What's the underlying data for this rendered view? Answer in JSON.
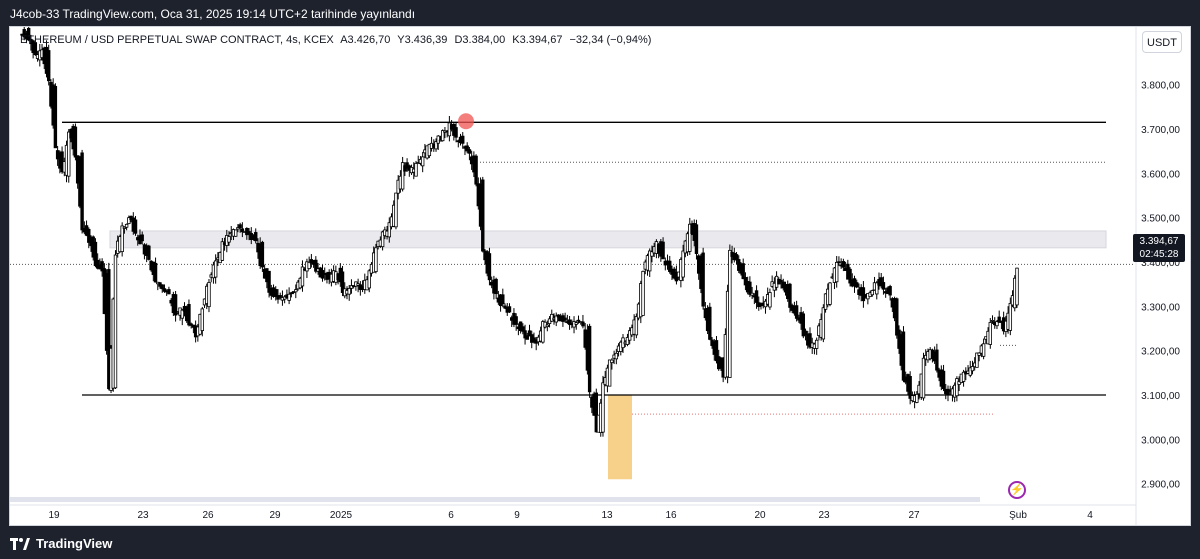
{
  "header": {
    "published": "J4cob-33 TradingView.com, Oca 31, 2025 19:14 UTC+2 tarihinde yayınlandı"
  },
  "legend": {
    "symbol": "ETHEREUM / USD PERPETUAL SWAP CONTRACT, 4s, KCEX",
    "open": "A3.426,70",
    "high": "Y3.436,39",
    "low": "D3.384,00",
    "close": "K3.394,67",
    "change": "−32,34 (−0,94%)"
  },
  "currency_button": "USDT",
  "price_tag": {
    "price": "3.394,67",
    "countdown": "02:45:28"
  },
  "footer": {
    "brand": "TradingView"
  },
  "colors": {
    "bull": "#ffffff",
    "bear": "#000000",
    "highlight": "#f5c56b",
    "marker": "#ef5350",
    "zone": "#e9e9ee",
    "bolt": "#9c27b0"
  },
  "chart_data": {
    "type": "candlestick",
    "ylim": [
      2870,
      3930
    ],
    "y_ticks": [
      2900,
      3000,
      3100,
      3200,
      3300,
      3400,
      3500,
      3600,
      3700,
      3800
    ],
    "y_tick_labels": [
      "2.900,00",
      "3.000,00",
      "3.100,00",
      "3.200,00",
      "3.300,00",
      "3.400,00",
      "3.500,00",
      "3.600,00",
      "3.700,00",
      "3.800,00"
    ],
    "x_tick_labels": [
      "19",
      "23",
      "26",
      "29",
      "2025",
      "6",
      "9",
      "13",
      "16",
      "20",
      "23",
      "27",
      "Şub",
      "4"
    ],
    "last_price": 3394.67,
    "horizontal_levels": [
      {
        "price": 3715,
        "style": "solid",
        "label": ""
      },
      {
        "price": 3100,
        "style": "solid",
        "label": ""
      },
      {
        "price": 3625,
        "style": "dotted",
        "label": ""
      },
      {
        "price": 3057,
        "style": "dotted-red",
        "label": ""
      },
      {
        "price": 3212,
        "style": "dotted",
        "label": ""
      }
    ],
    "resistance_zone": [
      3432,
      3470
    ],
    "highlight_range": [
      2910,
      3100
    ],
    "marked_high": 3722,
    "path": [
      3920,
      3900,
      3860,
      3880,
      3800,
      3650,
      3600,
      3700,
      3640,
      3480,
      3450,
      3400,
      3380,
      3110,
      3420,
      3480,
      3500,
      3460,
      3440,
      3400,
      3350,
      3340,
      3320,
      3280,
      3300,
      3260,
      3240,
      3300,
      3360,
      3400,
      3440,
      3460,
      3480,
      3470,
      3460,
      3440,
      3380,
      3340,
      3320,
      3320,
      3330,
      3340,
      3380,
      3400,
      3380,
      3370,
      3360,
      3380,
      3330,
      3340,
      3350,
      3340,
      3380,
      3430,
      3460,
      3480,
      3560,
      3620,
      3600,
      3620,
      3640,
      3660,
      3670,
      3690,
      3710,
      3680,
      3660,
      3640,
      3580,
      3420,
      3360,
      3320,
      3300,
      3280,
      3260,
      3240,
      3230,
      3220,
      3260,
      3270,
      3280,
      3270,
      3260,
      3270,
      3250,
      3100,
      3020,
      3120,
      3180,
      3200,
      3220,
      3240,
      3280,
      3380,
      3420,
      3440,
      3400,
      3380,
      3360,
      3420,
      3480,
      3420,
      3300,
      3220,
      3180,
      3140,
      3420,
      3400,
      3360,
      3330,
      3310,
      3300,
      3340,
      3360,
      3350,
      3300,
      3280,
      3240,
      3210,
      3230,
      3300,
      3360,
      3400,
      3390,
      3360,
      3340,
      3320,
      3330,
      3360,
      3340,
      3320,
      3240,
      3140,
      3090,
      3100,
      3180,
      3200,
      3160,
      3110,
      3100,
      3130,
      3150,
      3160,
      3190,
      3220,
      3260,
      3270,
      3250,
      3300,
      3395
    ]
  }
}
